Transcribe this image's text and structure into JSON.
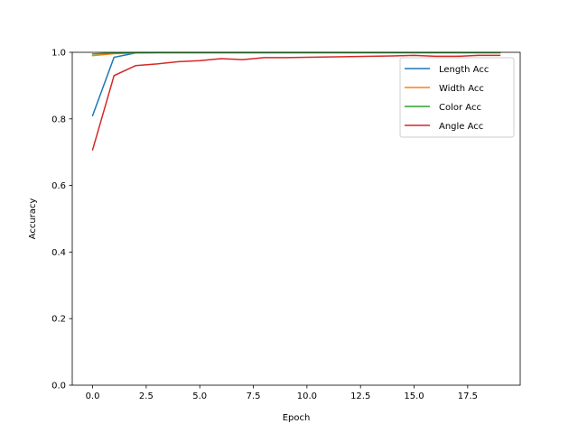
{
  "chart_data": {
    "type": "line",
    "title": "",
    "xlabel": "Epoch",
    "ylabel": "Accuracy",
    "xlim": [
      -0.95,
      19.95
    ],
    "ylim": [
      0.0,
      1.0
    ],
    "xticks": [
      0.0,
      2.5,
      5.0,
      7.5,
      10.0,
      12.5,
      15.0,
      17.5
    ],
    "xtick_labels": [
      "0.0",
      "2.5",
      "5.0",
      "7.5",
      "10.0",
      "12.5",
      "15.0",
      "17.5"
    ],
    "yticks": [
      0.0,
      0.2,
      0.4,
      0.6,
      0.8,
      1.0
    ],
    "ytick_labels": [
      "0.0",
      "0.2",
      "0.4",
      "0.6",
      "0.8",
      "1.0"
    ],
    "grid": false,
    "legend_position": "top-right",
    "x": [
      0,
      1,
      2,
      3,
      4,
      5,
      6,
      7,
      8,
      9,
      10,
      11,
      12,
      13,
      14,
      15,
      16,
      17,
      18,
      19
    ],
    "series": [
      {
        "name": "Length Acc",
        "color": "#1f77b4",
        "values": [
          0.81,
          0.985,
          0.998,
          0.999,
          0.999,
          0.999,
          0.999,
          0.999,
          0.999,
          0.999,
          0.999,
          0.999,
          0.999,
          0.999,
          0.999,
          0.999,
          0.999,
          0.999,
          0.999,
          0.999
        ]
      },
      {
        "name": "Width Acc",
        "color": "#ff7f0e",
        "values": [
          0.99,
          0.996,
          0.998,
          0.999,
          0.999,
          0.999,
          0.999,
          0.999,
          0.999,
          0.999,
          0.999,
          0.999,
          0.999,
          0.999,
          0.999,
          0.999,
          0.999,
          0.999,
          0.999,
          0.999
        ]
      },
      {
        "name": "Color Acc",
        "color": "#2ca02c",
        "values": [
          0.995,
          0.998,
          0.999,
          0.999,
          0.999,
          0.999,
          0.999,
          0.999,
          0.999,
          0.999,
          0.999,
          0.999,
          0.999,
          0.999,
          0.999,
          0.999,
          0.999,
          0.999,
          0.999,
          0.999
        ]
      },
      {
        "name": "Angle Acc",
        "color": "#d62728",
        "values": [
          0.707,
          0.93,
          0.96,
          0.965,
          0.972,
          0.975,
          0.981,
          0.978,
          0.984,
          0.984,
          0.985,
          0.986,
          0.987,
          0.988,
          0.989,
          0.991,
          0.988,
          0.988,
          0.991,
          0.991
        ]
      }
    ]
  }
}
